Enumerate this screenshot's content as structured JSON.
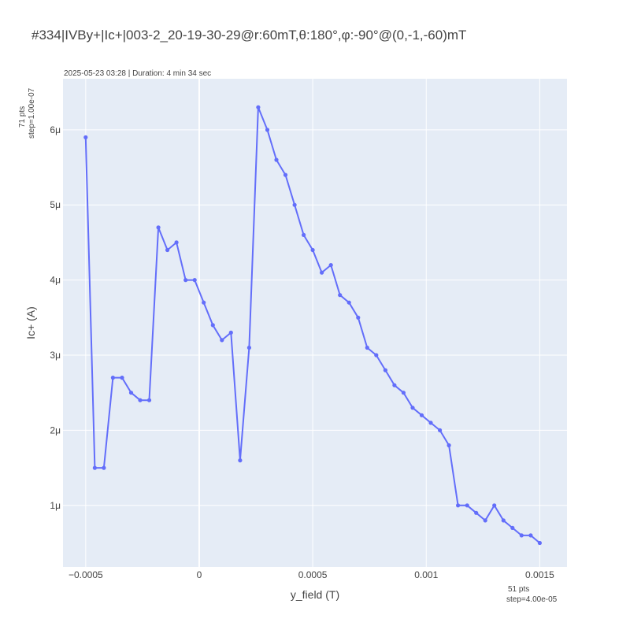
{
  "chart_data": {
    "type": "line",
    "title": "#334|IVBy+|Ic+|003-2_20-19-30-29@r:60mT,θ:180°,φ:-90°@(0,-1,-60)mT",
    "subtitle": "2025-05-23 03:28 | Duration: 4 min 34 sec",
    "xlabel": "y_field (T)",
    "ylabel": "Ic+ (A)",
    "y_note": [
      "71 pts",
      "step=1.00e-07"
    ],
    "x_note": [
      "51 pts",
      "step=4.00e-05"
    ],
    "xlim": [
      -0.0006,
      0.00162
    ],
    "ylim": [
      1.8e-07,
      6.68e-06
    ],
    "x_ticks": [
      -0.0005,
      0,
      0.0005,
      0.001,
      0.0015
    ],
    "x_tick_labels": [
      "−0.0005",
      "0",
      "0.0005",
      "0.001",
      "0.0015"
    ],
    "y_ticks": [
      1e-06,
      2e-06,
      3e-06,
      4e-06,
      5e-06,
      6e-06
    ],
    "y_tick_labels": [
      "1μ",
      "2μ",
      "3μ",
      "4μ",
      "5μ",
      "6μ"
    ],
    "grid": true,
    "line_color": "#636efa",
    "plot_bg": "#e5ecf6",
    "x": [
      -0.0005,
      -0.00046,
      -0.00042,
      -0.00038,
      -0.00034,
      -0.0003,
      -0.00026,
      -0.00022,
      -0.00018,
      -0.00014,
      -0.0001,
      -6e-05,
      -2e-05,
      2e-05,
      6e-05,
      0.0001,
      0.00014,
      0.00018,
      0.00022,
      0.00026,
      0.0003,
      0.00034,
      0.00038,
      0.00042,
      0.00046,
      0.0005,
      0.00054,
      0.00058,
      0.00062,
      0.00066,
      0.0007,
      0.00074,
      0.00078,
      0.00082,
      0.00086,
      0.0009,
      0.00094,
      0.00098,
      0.00102,
      0.00106,
      0.0011,
      0.00114,
      0.00118,
      0.00122,
      0.00126,
      0.0013,
      0.00134,
      0.00138,
      0.00142,
      0.00146,
      0.0015
    ],
    "y": [
      5.9e-06,
      1.5e-06,
      1.5e-06,
      2.7e-06,
      2.7e-06,
      2.5e-06,
      2.4e-06,
      2.4e-06,
      4.7e-06,
      4.4e-06,
      4.5e-06,
      4e-06,
      4e-06,
      3.7e-06,
      3.4e-06,
      3.2e-06,
      3.3e-06,
      1.6e-06,
      3.1e-06,
      6.3e-06,
      6e-06,
      5.6e-06,
      5.4e-06,
      5e-06,
      4.6e-06,
      4.4e-06,
      4.1e-06,
      4.2e-06,
      3.8e-06,
      3.7e-06,
      3.5e-06,
      3.1e-06,
      3e-06,
      2.8e-06,
      2.6e-06,
      2.5e-06,
      2.3e-06,
      2.2e-06,
      2.1e-06,
      2e-06,
      1.8e-06,
      1e-06,
      1e-06,
      9e-07,
      8e-07,
      1e-06,
      8e-07,
      7e-07,
      6e-07,
      6e-07,
      5e-07
    ]
  }
}
